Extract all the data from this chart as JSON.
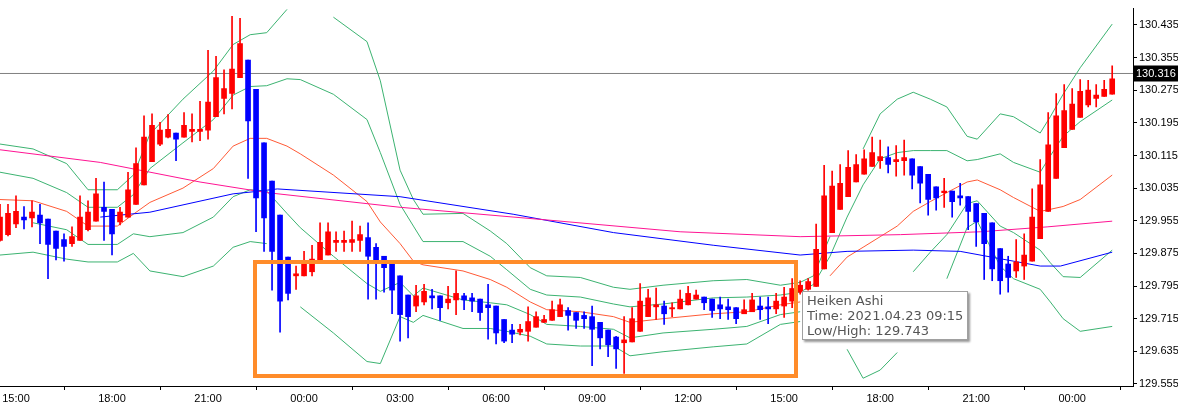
{
  "chart_data": {
    "type": "candlestick",
    "x": [
      "2021-04-22T14:30",
      "2021-04-22T14:45",
      "2021-04-22T15:00",
      "2021-04-22T15:15",
      "2021-04-22T15:30",
      "2021-04-22T15:45",
      "2021-04-22T16:00",
      "2021-04-22T16:15",
      "2021-04-22T16:30",
      "2021-04-22T16:45",
      "2021-04-22T17:00",
      "2021-04-22T17:15",
      "2021-04-22T17:30",
      "2021-04-22T17:45",
      "2021-04-22T18:00",
      "2021-04-22T18:15",
      "2021-04-22T18:30",
      "2021-04-22T18:45",
      "2021-04-22T19:00",
      "2021-04-22T19:15",
      "2021-04-22T19:30",
      "2021-04-22T19:45",
      "2021-04-22T20:00",
      "2021-04-22T20:15",
      "2021-04-22T20:30",
      "2021-04-22T20:45",
      "2021-04-22T21:00",
      "2021-04-22T21:15",
      "2021-04-22T21:30",
      "2021-04-22T21:45",
      "2021-04-22T22:00",
      "2021-04-22T22:15",
      "2021-04-22T22:30",
      "2021-04-22T22:45",
      "2021-04-22T23:00",
      "2021-04-22T23:15",
      "2021-04-22T23:30",
      "2021-04-22T23:45",
      "2021-04-23T00:00",
      "2021-04-23T00:15",
      "2021-04-23T00:30",
      "2021-04-23T00:45",
      "2021-04-23T01:00",
      "2021-04-23T01:15",
      "2021-04-23T01:30",
      "2021-04-23T01:45",
      "2021-04-23T02:00",
      "2021-04-23T02:15",
      "2021-04-23T02:30",
      "2021-04-23T02:45",
      "2021-04-23T03:00",
      "2021-04-23T03:15",
      "2021-04-23T03:30",
      "2021-04-23T03:45",
      "2021-04-23T04:00",
      "2021-04-23T04:15",
      "2021-04-23T04:30",
      "2021-04-23T04:45",
      "2021-04-23T05:00",
      "2021-04-23T05:15",
      "2021-04-23T05:30",
      "2021-04-23T05:45",
      "2021-04-23T06:00",
      "2021-04-23T06:15",
      "2021-04-23T06:30",
      "2021-04-23T06:45",
      "2021-04-23T07:00",
      "2021-04-23T07:15",
      "2021-04-23T07:30",
      "2021-04-23T07:45",
      "2021-04-23T08:00",
      "2021-04-23T08:15",
      "2021-04-23T08:30",
      "2021-04-23T08:45",
      "2021-04-23T09:00",
      "2021-04-23T09:15",
      "2021-04-23T09:30",
      "2021-04-23T09:45",
      "2021-04-23T10:00",
      "2021-04-23T10:15",
      "2021-04-23T10:30",
      "2021-04-23T10:45",
      "2021-04-23T11:00",
      "2021-04-23T11:15",
      "2021-04-23T11:30",
      "2021-04-23T11:45",
      "2021-04-23T12:00",
      "2021-04-23T12:15",
      "2021-04-23T12:30",
      "2021-04-23T12:45",
      "2021-04-23T13:00",
      "2021-04-23T13:15",
      "2021-04-23T13:30",
      "2021-04-23T13:45",
      "2021-04-23T14:00",
      "2021-04-23T14:15",
      "2021-04-23T14:30",
      "2021-04-23T14:45",
      "2021-04-23T15:00",
      "2021-04-23T15:15",
      "2021-04-23T15:30",
      "2021-04-23T15:45",
      "2021-04-23T16:00",
      "2021-04-23T16:15",
      "2021-04-23T16:30",
      "2021-04-23T16:45",
      "2021-04-23T17:00",
      "2021-04-23T17:15",
      "2021-04-23T17:30",
      "2021-04-23T17:45",
      "2021-04-23T18:00",
      "2021-04-23T18:15",
      "2021-04-23T18:30",
      "2021-04-23T18:45",
      "2021-04-23T19:00",
      "2021-04-23T19:15",
      "2021-04-23T19:30",
      "2021-04-23T19:45",
      "2021-04-23T20:00",
      "2021-04-23T20:15",
      "2021-04-23T20:30",
      "2021-04-23T20:45",
      "2021-04-23T21:00",
      "2021-04-23T21:15",
      "2021-04-23T21:30",
      "2021-04-23T21:45",
      "2021-04-23T22:00",
      "2021-04-23T22:15",
      "2021-04-23T22:30",
      "2021-04-23T22:45",
      "2021-04-23T23:00",
      "2021-04-23T23:15",
      "2021-04-23T23:30",
      "2021-04-23T23:45",
      "2021-04-24T00:00",
      "2021-04-24T00:15",
      "2021-04-24T00:30",
      "2021-04-24T00:45",
      "2021-04-24T01:00",
      "2021-04-24T01:15"
    ],
    "ohlc": [
      [
        129.907,
        129.995,
        129.905,
        129.964
      ],
      [
        129.921,
        129.995,
        129.918,
        129.973
      ],
      [
        129.947,
        130.016,
        129.938,
        129.978
      ],
      [
        129.964,
        129.99,
        129.935,
        129.957
      ],
      [
        129.962,
        130.004,
        129.94,
        129.976
      ],
      [
        129.969,
        129.995,
        129.899,
        129.95
      ],
      [
        129.959,
        129.959,
        129.813,
        129.897
      ],
      [
        129.93,
        129.93,
        129.859,
        129.887
      ],
      [
        129.909,
        129.923,
        129.856,
        129.892
      ],
      [
        129.899,
        129.94,
        129.892,
        129.916
      ],
      [
        129.907,
        130.016,
        129.907,
        129.964
      ],
      [
        129.933,
        130.004,
        129.93,
        129.976
      ],
      [
        129.954,
        130.059,
        129.954,
        130.021
      ],
      [
        129.988,
        130.05,
        129.907,
        129.978
      ],
      [
        129.983,
        129.983,
        129.871,
        129.923
      ],
      [
        129.952,
        129.988,
        129.945,
        129.976
      ],
      [
        129.964,
        130.074,
        129.964,
        130.031
      ],
      [
        129.995,
        130.134,
        129.995,
        130.095
      ],
      [
        130.043,
        130.212,
        130.043,
        130.16
      ],
      [
        130.1,
        130.217,
        130.1,
        130.189
      ],
      [
        130.143,
        130.196,
        130.139,
        130.177
      ],
      [
        130.16,
        130.215,
        130.158,
        130.179
      ],
      [
        130.17,
        130.17,
        130.102,
        130.155
      ],
      [
        130.16,
        130.22,
        130.16,
        130.189
      ],
      [
        130.174,
        130.217,
        130.148,
        130.179
      ],
      [
        130.174,
        130.248,
        130.151,
        130.179
      ],
      [
        130.177,
        130.373,
        130.155,
        130.246
      ],
      [
        130.21,
        130.358,
        130.21,
        130.306
      ],
      [
        130.255,
        130.325,
        130.217,
        130.279
      ],
      [
        130.267,
        130.456,
        130.229,
        130.327
      ],
      [
        130.306,
        130.451,
        130.306,
        130.389
      ],
      [
        130.349,
        130.349,
        130.059,
        130.2
      ],
      [
        130.277,
        130.277,
        129.928,
        130.011
      ],
      [
        130.146,
        130.146,
        129.88,
        129.962
      ],
      [
        130.052,
        130.052,
        129.785,
        129.88
      ],
      [
        129.969,
        129.969,
        129.682,
        129.758
      ],
      [
        129.866,
        129.866,
        129.761,
        129.777
      ],
      [
        129.82,
        129.844,
        129.787,
        129.825
      ],
      [
        129.82,
        129.88,
        129.82,
        129.852
      ],
      [
        129.83,
        129.895,
        129.82,
        129.861
      ],
      [
        129.852,
        129.95,
        129.852,
        129.902
      ],
      [
        129.871,
        129.95,
        129.871,
        129.928
      ],
      [
        129.902,
        129.928,
        129.88,
        129.907
      ],
      [
        129.902,
        129.93,
        129.88,
        129.907
      ],
      [
        129.902,
        129.954,
        129.88,
        129.909
      ],
      [
        129.907,
        129.942,
        129.88,
        129.921
      ],
      [
        129.914,
        129.95,
        129.763,
        129.868
      ],
      [
        129.89,
        129.899,
        129.763,
        129.852
      ],
      [
        129.868,
        129.868,
        129.78,
        129.84
      ],
      [
        129.856,
        129.856,
        129.727,
        129.785
      ],
      [
        129.82,
        129.82,
        129.66,
        129.725
      ],
      [
        129.773,
        129.773,
        129.668,
        129.72
      ],
      [
        129.746,
        129.797,
        129.732,
        129.771
      ],
      [
        129.756,
        129.799,
        129.749,
        129.782
      ],
      [
        129.771,
        129.787,
        129.739,
        129.766
      ],
      [
        129.771,
        129.771,
        129.711,
        129.742
      ],
      [
        129.754,
        129.794,
        129.739,
        129.763
      ],
      [
        129.761,
        129.832,
        129.725,
        129.777
      ],
      [
        129.771,
        129.777,
        129.737,
        129.761
      ],
      [
        129.766,
        129.777,
        129.732,
        129.758
      ],
      [
        129.763,
        129.763,
        129.711,
        129.73
      ],
      [
        129.749,
        129.799,
        129.665,
        129.742
      ],
      [
        129.746,
        129.746,
        129.653,
        129.68
      ],
      [
        129.713,
        129.713,
        129.656,
        129.66
      ],
      [
        129.687,
        129.701,
        129.656,
        129.677
      ],
      [
        129.682,
        129.701,
        129.675,
        129.689
      ],
      [
        129.684,
        129.744,
        129.66,
        129.708
      ],
      [
        129.694,
        129.732,
        129.694,
        129.72
      ],
      [
        129.706,
        129.723,
        129.706,
        129.713
      ],
      [
        129.711,
        129.758,
        129.711,
        129.737
      ],
      [
        129.72,
        129.763,
        129.72,
        129.749
      ],
      [
        129.735,
        129.742,
        129.687,
        129.723
      ],
      [
        129.73,
        129.73,
        129.691,
        129.711
      ],
      [
        129.723,
        129.732,
        129.691,
        129.715
      ],
      [
        129.72,
        129.746,
        129.6,
        129.689
      ],
      [
        129.706,
        129.706,
        129.641,
        129.668
      ],
      [
        129.687,
        129.687,
        129.622,
        129.651
      ],
      [
        129.67,
        129.672,
        129.593,
        129.641
      ],
      [
        129.656,
        129.72,
        129.581,
        129.663
      ],
      [
        129.658,
        129.742,
        129.658,
        129.715
      ],
      [
        129.684,
        129.801,
        129.684,
        129.758
      ],
      [
        129.72,
        129.787,
        129.72,
        129.766
      ],
      [
        129.744,
        129.79,
        129.713,
        129.749
      ],
      [
        129.746,
        129.758,
        129.701,
        129.727
      ],
      [
        129.739,
        129.754,
        129.72,
        129.742
      ],
      [
        129.739,
        129.785,
        129.739,
        129.763
      ],
      [
        129.749,
        129.794,
        129.749,
        129.777
      ],
      [
        129.763,
        129.785,
        129.763,
        129.773
      ],
      [
        129.768,
        129.768,
        129.737,
        129.754
      ],
      [
        129.763,
        129.763,
        129.718,
        129.735
      ],
      [
        129.749,
        129.768,
        129.715,
        129.739
      ],
      [
        129.744,
        129.763,
        129.713,
        129.737
      ],
      [
        129.742,
        129.742,
        129.703,
        129.715
      ],
      [
        129.727,
        129.761,
        129.727,
        129.737
      ],
      [
        129.732,
        129.777,
        129.732,
        129.761
      ],
      [
        129.746,
        129.768,
        129.713,
        129.737
      ],
      [
        129.744,
        129.768,
        129.703,
        129.739
      ],
      [
        129.739,
        129.777,
        129.727,
        129.758
      ],
      [
        129.746,
        129.792,
        129.718,
        129.768
      ],
      [
        129.758,
        129.813,
        129.742,
        129.789
      ],
      [
        129.78,
        129.808,
        129.775,
        129.797
      ],
      [
        129.787,
        129.813,
        129.785,
        129.806
      ],
      [
        129.794,
        129.947,
        129.794,
        129.885
      ],
      [
        129.837,
        130.091,
        129.837,
        130.016
      ],
      [
        129.926,
        130.077,
        129.926,
        130.04
      ],
      [
        129.983,
        130.093,
        129.983,
        130.047
      ],
      [
        130.014,
        130.127,
        130.014,
        130.086
      ],
      [
        130.05,
        130.117,
        130.05,
        130.093
      ],
      [
        130.069,
        130.129,
        130.069,
        130.107
      ],
      [
        130.088,
        130.16,
        130.088,
        130.122
      ],
      [
        130.102,
        130.153,
        130.083,
        130.112
      ],
      [
        130.11,
        130.136,
        130.072,
        130.093
      ],
      [
        130.1,
        130.139,
        130.064,
        130.105
      ],
      [
        130.102,
        130.153,
        130.067,
        130.11
      ],
      [
        130.107,
        130.107,
        130.033,
        130.067
      ],
      [
        130.088,
        130.088,
        129.999,
        130.047
      ],
      [
        130.069,
        130.069,
        129.969,
        130.007
      ],
      [
        130.038,
        130.038,
        129.981,
        130.011
      ],
      [
        130.024,
        130.059,
        129.988,
        130.028
      ],
      [
        130.028,
        130.028,
        129.964,
        130.002
      ],
      [
        130.016,
        130.047,
        129.993,
        130.011
      ],
      [
        130.014,
        130.014,
        129.933,
        129.978
      ],
      [
        129.997,
        129.997,
        129.892,
        129.952
      ],
      [
        129.973,
        129.973,
        129.811,
        129.899
      ],
      [
        129.95,
        129.95,
        129.808,
        129.837
      ],
      [
        129.887,
        129.887,
        129.775,
        129.808
      ],
      [
        129.849,
        129.868,
        129.78,
        129.816
      ],
      [
        129.832,
        129.909,
        129.816,
        129.854
      ],
      [
        129.844,
        129.923,
        129.811,
        129.871
      ],
      [
        129.856,
        130.033,
        129.856,
        129.964
      ],
      [
        129.911,
        130.105,
        129.911,
        130.043
      ],
      [
        129.978,
        130.22,
        129.978,
        130.141
      ],
      [
        130.059,
        130.267,
        130.059,
        130.212
      ],
      [
        130.134,
        130.289,
        130.134,
        130.225
      ],
      [
        130.179,
        130.279,
        130.179,
        130.241
      ],
      [
        130.208,
        130.301,
        130.208,
        130.272
      ],
      [
        130.239,
        130.299,
        130.234,
        130.275
      ],
      [
        130.255,
        130.289,
        130.234,
        130.263
      ],
      [
        130.26,
        130.299,
        130.26,
        130.277
      ],
      [
        130.265,
        130.335,
        130.265,
        130.303
      ]
    ],
    "colors": [
      "#ff0000",
      "#ff0000",
      "#ff0000",
      "#0000ff",
      "#ff0000",
      "#0000ff",
      "#0000ff",
      "#0000ff",
      "#0000ff",
      "#ff0000",
      "#ff0000",
      "#ff0000",
      "#ff0000",
      "#0000ff",
      "#0000ff",
      "#ff0000",
      "#ff0000",
      "#ff0000",
      "#ff0000",
      "#ff0000",
      "#ff0000",
      "#ff0000",
      "#0000ff",
      "#ff0000",
      "#ff0000",
      "#ff0000",
      "#ff0000",
      "#ff0000",
      "#ff0000",
      "#ff0000",
      "#ff0000",
      "#0000ff",
      "#0000ff",
      "#0000ff",
      "#0000ff",
      "#0000ff",
      "#0000ff",
      "#ff0000",
      "#ff0000",
      "#ff0000",
      "#ff0000",
      "#ff0000",
      "#ff0000",
      "#ff0000",
      "#ff0000",
      "#ff0000",
      "#0000ff",
      "#0000ff",
      "#0000ff",
      "#0000ff",
      "#0000ff",
      "#0000ff",
      "#ff0000",
      "#ff0000",
      "#0000ff",
      "#0000ff",
      "#ff0000",
      "#ff0000",
      "#0000ff",
      "#0000ff",
      "#0000ff",
      "#0000ff",
      "#0000ff",
      "#0000ff",
      "#0000ff",
      "#ff0000",
      "#ff0000",
      "#ff0000",
      "#ff0000",
      "#ff0000",
      "#ff0000",
      "#0000ff",
      "#0000ff",
      "#0000ff",
      "#0000ff",
      "#0000ff",
      "#0000ff",
      "#0000ff",
      "#ff0000",
      "#ff0000",
      "#ff0000",
      "#ff0000",
      "#ff0000",
      "#0000ff",
      "#ff0000",
      "#ff0000",
      "#ff0000",
      "#ff0000",
      "#0000ff",
      "#0000ff",
      "#0000ff",
      "#0000ff",
      "#0000ff",
      "#ff0000",
      "#ff0000",
      "#0000ff",
      "#0000ff",
      "#ff0000",
      "#ff0000",
      "#ff0000",
      "#ff0000",
      "#ff0000",
      "#ff0000",
      "#ff0000",
      "#ff0000",
      "#ff0000",
      "#ff0000",
      "#ff0000",
      "#ff0000",
      "#ff0000",
      "#ff0000",
      "#0000ff",
      "#ff0000",
      "#ff0000",
      "#0000ff",
      "#0000ff",
      "#0000ff",
      "#0000ff",
      "#ff0000",
      "#0000ff",
      "#0000ff",
      "#0000ff",
      "#0000ff",
      "#0000ff",
      "#0000ff",
      "#0000ff",
      "#0000ff",
      "#ff0000",
      "#ff0000",
      "#ff0000",
      "#ff0000",
      "#ff0000",
      "#ff0000",
      "#ff0000",
      "#ff0000",
      "#ff0000",
      "#ff0000",
      "#ff0000",
      "#ff0000",
      "#ff0000"
    ],
    "series": [
      {
        "type": "line",
        "color": "#ff1493",
        "x": [
          "2021-04-22T14:30",
          "2021-04-22T17:38",
          "2021-04-22T20:45",
          "2021-04-22T22:50",
          "2021-04-23T03:00",
          "2021-04-23T07:35",
          "2021-04-23T11:45",
          "2021-04-23T15:30",
          "2021-04-23T18:38",
          "2021-04-23T21:08",
          "2021-04-23T23:13",
          "2021-04-24T01:15"
        ],
        "values": [
          130.129,
          130.098,
          130.05,
          130.024,
          129.988,
          129.957,
          129.928,
          129.916,
          129.921,
          129.928,
          129.94,
          129.954
        ]
      },
      {
        "type": "line",
        "color": "#0000ff",
        "x": [
          "2021-04-22T17:38",
          "2021-04-22T19:11",
          "2021-04-22T21:47",
          "2021-04-22T22:25",
          "2021-04-22T23:10",
          "2021-04-23T03:00",
          "2021-04-23T06:32",
          "2021-04-23T09:40",
          "2021-04-23T12:47",
          "2021-04-23T15:30",
          "2021-04-23T16:58",
          "2021-04-23T19:02",
          "2021-04-23T20:30",
          "2021-04-23T22:10",
          "2021-04-23T23:00",
          "2021-04-23T23:38",
          "2021-04-24T01:15"
        ],
        "values": [
          129.964,
          129.976,
          130.021,
          130.026,
          130.033,
          130.014,
          129.971,
          129.926,
          129.895,
          129.871,
          129.88,
          129.883,
          129.88,
          129.856,
          129.844,
          129.844,
          129.878
        ]
      },
      {
        "type": "line",
        "color": "#ff5a36",
        "x": [
          "2021-04-22T14:30",
          "2021-04-22T15:32",
          "2021-04-22T16:35",
          "2021-04-22T17:15",
          "2021-04-22T18:10",
          "2021-04-22T18:40",
          "2021-04-22T19:11",
          "2021-04-22T20:13",
          "2021-04-22T21:10",
          "2021-04-22T21:47",
          "2021-04-22T22:19",
          "2021-04-22T22:50",
          "2021-04-22T23:28",
          "2021-04-22T23:53",
          "2021-04-23T00:55",
          "2021-04-23T01:58",
          "2021-04-23T02:23",
          "2021-04-23T03:00",
          "2021-04-23T03:25",
          "2021-04-23T03:43",
          "2021-04-23T04:58",
          "2021-04-23T05:49",
          "2021-04-23T06:20",
          "2021-04-23T07:04",
          "2021-04-23T07:35",
          "2021-04-23T08:38",
          "2021-04-23T09:40",
          "2021-04-23T10:11",
          "2021-04-23T11:13",
          "2021-04-23T12:47",
          "2021-04-23T13:50",
          "2021-04-23T14:53",
          "2021-04-23T15:30",
          "2021-04-23T15:55",
          "2021-04-23T16:26",
          "2021-04-23T16:58",
          "2021-04-23T17:28",
          "2021-04-23T18:00",
          "2021-04-23T18:32",
          "2021-04-23T19:02",
          "2021-04-23T19:34",
          "2021-04-23T20:05",
          "2021-04-23T20:43",
          "2021-04-23T21:02",
          "2021-04-23T21:45",
          "2021-04-23T22:10",
          "2021-04-23T23:00",
          "2021-04-23T23:19",
          "2021-04-23T23:43",
          "2021-04-24T00:15",
          "2021-04-24T01:15"
        ],
        "values": [
          130.007,
          130.004,
          129.978,
          129.942,
          129.942,
          129.971,
          130.0,
          130.035,
          130.083,
          130.138,
          130.157,
          130.157,
          130.138,
          130.119,
          130.067,
          130.002,
          129.952,
          129.899,
          129.856,
          129.847,
          129.832,
          129.811,
          129.792,
          129.756,
          129.737,
          129.732,
          129.72,
          129.706,
          129.715,
          129.727,
          129.732,
          129.749,
          129.756,
          null,
          129.82,
          129.866,
          129.89,
          129.916,
          129.942,
          129.978,
          130.002,
          130.024,
          130.05,
          130.055,
          130.031,
          130.012,
          129.978,
          129.983,
          129.99,
          130.007,
          130.067
        ]
      },
      {
        "type": "line",
        "color": "#3cb371",
        "x": [
          "2021-04-22T14:30",
          "2021-04-22T15:32",
          "2021-04-22T16:35",
          "2021-04-22T17:15",
          "2021-04-22T18:10",
          "2021-04-22T18:40",
          "2021-04-22T19:11",
          "2021-04-22T20:13",
          "2021-04-22T21:10",
          "2021-04-22T21:47",
          "2021-04-22T22:19",
          "2021-04-22T22:50",
          "2021-04-22T23:28",
          "2021-04-22T23:53",
          "2021-04-23T00:55",
          "2021-04-23T01:58",
          "2021-04-23T02:23",
          "2021-04-23T03:00",
          "2021-04-23T03:25",
          "2021-04-23T03:43",
          "2021-04-23T04:58",
          "2021-04-23T05:49",
          "2021-04-23T06:20",
          "2021-04-23T07:04",
          "2021-04-23T07:35",
          "2021-04-23T08:38",
          "2021-04-23T09:40",
          "2021-04-23T10:11",
          "2021-04-23T11:13",
          "2021-04-23T12:47",
          "2021-04-23T13:50",
          "2021-04-23T14:53",
          "2021-04-23T15:30",
          "2021-04-23T15:55",
          "2021-04-23T16:26",
          "2021-04-23T16:58",
          "2021-04-23T17:28",
          "2021-04-23T18:00",
          "2021-04-23T18:32",
          "2021-04-23T19:02",
          "2021-04-23T19:34",
          "2021-04-23T20:05",
          "2021-04-23T20:43",
          "2021-04-23T21:02",
          "2021-04-23T21:45",
          "2021-04-23T22:10",
          "2021-04-23T23:00",
          "2021-04-23T23:19",
          "2021-04-23T23:43",
          "2021-04-24T00:15",
          "2021-04-24T01:15"
        ],
        "values": [
          130.074,
          130.059,
          130.024,
          129.988,
          129.988,
          130.019,
          130.083,
          130.146,
          130.203,
          130.263,
          130.284,
          130.286,
          130.303,
          130.301,
          130.265,
          130.203,
          130.122,
          129.995,
          129.942,
          129.904,
          129.904,
          129.868,
          129.835,
          129.787,
          129.773,
          129.768,
          129.751,
          129.744,
          129.751,
          129.766,
          129.768,
          129.773,
          129.78,
          129.799,
          129.868,
          129.964,
          130.043,
          130.107,
          130.122,
          130.127,
          130.127,
          130.127,
          130.102,
          130.105,
          130.119,
          130.098,
          130.074,
          130.114,
          130.162,
          130.198,
          130.251
        ]
      },
      {
        "type": "line",
        "color": "#3cb371",
        "x": [
          "2021-04-22T14:30",
          "2021-04-22T15:32",
          "2021-04-22T16:35",
          "2021-04-22T17:15",
          "2021-04-22T18:10",
          "2021-04-22T18:40",
          "2021-04-22T19:11",
          "2021-04-22T20:13",
          "2021-04-22T21:10",
          "2021-04-22T21:47",
          "2021-04-22T22:19",
          "2021-04-22T22:50",
          "2021-04-22T23:28",
          "2021-04-22T23:53",
          "2021-04-23T00:55",
          "2021-04-23T01:58",
          "2021-04-23T02:23",
          "2021-04-23T03:00",
          "2021-04-23T03:25",
          "2021-04-23T03:43",
          "2021-04-23T04:58",
          "2021-04-23T05:49",
          "2021-04-23T06:20",
          "2021-04-23T07:04",
          "2021-04-23T07:35",
          "2021-04-23T08:38",
          "2021-04-23T09:40",
          "2021-04-23T10:11",
          "2021-04-23T11:13",
          "2021-04-23T12:47",
          "2021-04-23T13:50",
          "2021-04-23T14:53",
          "2021-04-23T15:30",
          "2021-04-23T15:55",
          "2021-04-23T16:26",
          "2021-04-23T16:58",
          "2021-04-23T17:28",
          "2021-04-23T18:00",
          "2021-04-23T18:32",
          "2021-04-23T19:02",
          "2021-04-23T19:34",
          "2021-04-23T20:05",
          "2021-04-23T20:43",
          "2021-04-23T21:02",
          "2021-04-23T21:45",
          "2021-04-23T22:10",
          "2021-04-23T23:00",
          "2021-04-23T23:19",
          "2021-04-23T23:43",
          "2021-04-24T00:15",
          "2021-04-24T01:15"
        ],
        "values": [
          130.143,
          130.131,
          130.095,
          130.031,
          130.031,
          130.067,
          130.167,
          130.253,
          130.322,
          130.387,
          130.411,
          130.416,
          130.473,
          null,
          130.454,
          130.394,
          130.298,
          130.079,
          130.007,
          129.971,
          129.973,
          129.93,
          129.899,
          129.84,
          129.82,
          129.816,
          129.792,
          129.787,
          129.797,
          129.808,
          129.811,
          129.797,
          129.804,
          129.82,
          129.916,
          null,
          130.131,
          130.217,
          130.253,
          130.27,
          130.253,
          130.234,
          130.162,
          130.155,
          130.217,
          130.21,
          130.17,
          130.21,
          130.265,
          130.33,
          130.437
        ]
      },
      {
        "type": "line",
        "color": "#3cb371",
        "x": [
          "2021-04-22T15:32",
          "2021-04-22T16:35",
          "2021-04-22T17:15",
          "2021-04-22T18:10",
          "2021-04-22T18:40",
          "2021-04-22T19:11",
          "2021-04-22T20:13",
          "2021-04-22T21:10",
          "2021-04-22T21:47",
          "2021-04-22T22:19",
          "2021-04-22T22:50",
          "2021-04-22T23:28",
          "2021-04-22T23:53",
          "2021-04-23T00:55",
          "2021-04-23T01:58",
          "2021-04-23T02:23",
          "2021-04-23T03:00",
          "2021-04-23T03:25",
          "2021-04-23T03:43",
          "2021-04-23T04:58",
          "2021-04-23T05:49",
          "2021-04-23T06:20",
          "2021-04-23T07:04",
          "2021-04-23T07:35",
          "2021-04-23T08:38",
          "2021-04-23T09:40",
          "2021-04-23T10:11",
          "2021-04-23T11:13",
          "2021-04-23T12:47",
          "2021-04-23T13:50",
          "2021-04-23T14:53",
          "2021-04-23T15:30",
          "2021-04-23T15:55",
          "2021-04-23T16:26",
          "2021-04-23T16:58",
          "2021-04-23T17:28",
          "2021-04-23T18:00",
          "2021-04-23T18:32",
          "2021-04-23T19:02",
          "2021-04-23T19:34",
          "2021-04-23T20:05",
          "2021-04-23T20:43",
          "2021-04-23T21:02",
          "2021-04-23T21:45",
          "2021-04-23T22:10",
          "2021-04-23T23:00",
          "2021-04-23T23:19",
          "2021-04-23T23:43",
          "2021-04-24T00:15",
          "2021-04-24T01:15"
        ],
        "values": [
          129.95,
          129.933,
          129.897,
          129.897,
          129.923,
          129.916,
          129.926,
          129.964,
          130.014,
          130.031,
          130.028,
          129.973,
          129.938,
          129.868,
          129.801,
          129.782,
          129.804,
          129.771,
          129.79,
          129.761,
          129.754,
          129.749,
          129.725,
          129.701,
          129.696,
          129.689,
          129.668,
          129.68,
          129.689,
          129.696,
          129.725,
          129.732,
          null,
          null,
          null,
          null,
          null,
          null,
          129.83,
          129.878,
          129.921,
          129.997,
          130.004,
          129.942,
          129.926,
          129.883,
          129.852,
          129.818,
          129.816,
          129.883
        ]
      },
      {
        "type": "line",
        "color": "#3cb371",
        "x": [
          "2021-04-22T14:30",
          "2021-04-22T15:32",
          "2021-04-22T16:35",
          "2021-04-22T17:15",
          "2021-04-22T18:10",
          "2021-04-22T18:40",
          "2021-04-22T19:11",
          "2021-04-22T20:13",
          "2021-04-22T21:10",
          "2021-04-22T21:47",
          "2021-04-22T22:19",
          "2021-04-22T22:50",
          "2021-04-22T23:28",
          "2021-04-22T23:53",
          "2021-04-23T00:55",
          "2021-04-23T01:58",
          "2021-04-23T02:23",
          "2021-04-23T03:00",
          "2021-04-23T03:25",
          "2021-04-23T03:43",
          "2021-04-23T04:58",
          "2021-04-23T05:49",
          "2021-04-23T06:20",
          "2021-04-23T07:04",
          "2021-04-23T07:35",
          "2021-04-23T08:38",
          "2021-04-23T09:40",
          "2021-04-23T10:11",
          "2021-04-23T11:13",
          "2021-04-23T12:47",
          "2021-04-23T13:50",
          "2021-04-23T14:53",
          "2021-04-23T15:30",
          "2021-04-23T15:55",
          "2021-04-23T16:26",
          "2021-04-23T16:58",
          "2021-04-23T17:28",
          "2021-04-23T18:00",
          "2021-04-23T18:32",
          "2021-04-23T19:02",
          "2021-04-23T19:34",
          "2021-04-23T20:05",
          "2021-04-23T20:43",
          "2021-04-23T21:02",
          "2021-04-23T21:45",
          "2021-04-23T22:10",
          "2021-04-23T23:00",
          "2021-04-23T23:19",
          "2021-04-23T23:43",
          "2021-04-24T00:15",
          "2021-04-24T01:15"
        ],
        "values": [
          129.871,
          129.878,
          129.861,
          129.854,
          129.854,
          129.875,
          129.832,
          129.818,
          129.844,
          129.89,
          129.904,
          129.899,
          null,
          129.744,
          129.68,
          129.61,
          129.605,
          129.72,
          129.706,
          129.723,
          129.691,
          129.691,
          129.684,
          129.672,
          129.653,
          129.648,
          129.648,
          129.624,
          129.634,
          129.646,
          129.653,
          129.701,
          129.708,
          null,
          null,
          129.64,
          129.569,
          129.589,
          129.632,
          null,
          null,
          129.813,
          129.938,
          129.954,
          129.844,
          129.813,
          129.787,
          129.756,
          129.715,
          129.684,
          129.696
        ]
      }
    ],
    "xlim": [
      "2021-04-22T14:30",
      "2021-04-24T01:54"
    ],
    "xticks": [
      {
        "value": "2021-04-22T15:00",
        "label": "15:00"
      },
      {
        "value": "2021-04-22T18:00",
        "label": "18:00"
      },
      {
        "value": "2021-04-22T21:00",
        "label": "21:00"
      },
      {
        "value": "2021-04-23T00:00",
        "label": "00:00"
      },
      {
        "value": "2021-04-23T03:00",
        "label": "03:00"
      },
      {
        "value": "2021-04-23T06:00",
        "label": "06:00"
      },
      {
        "value": "2021-04-23T09:00",
        "label": "09:00"
      },
      {
        "value": "2021-04-23T12:00",
        "label": "12:00"
      },
      {
        "value": "2021-04-23T15:00",
        "label": "15:00"
      },
      {
        "value": "2021-04-23T18:00",
        "label": "18:00"
      },
      {
        "value": "2021-04-23T21:00",
        "label": "21:00"
      },
      {
        "value": "2021-04-24T00:00",
        "label": "00:00"
      }
    ],
    "ylim": [
      129.55,
      130.475
    ],
    "yticks": [
      129.555,
      129.635,
      129.715,
      129.795,
      129.875,
      129.955,
      130.035,
      130.115,
      130.195,
      130.275,
      130.355,
      130.435
    ],
    "ref_lines": [
      {
        "axis": "y",
        "value": 130.316,
        "label": "130.316",
        "color": "#808080"
      }
    ],
    "annotations": [
      "Heiken Ashi",
      "Time: 2021.04.23 09:15",
      "Low/High: 129.743"
    ]
  }
}
